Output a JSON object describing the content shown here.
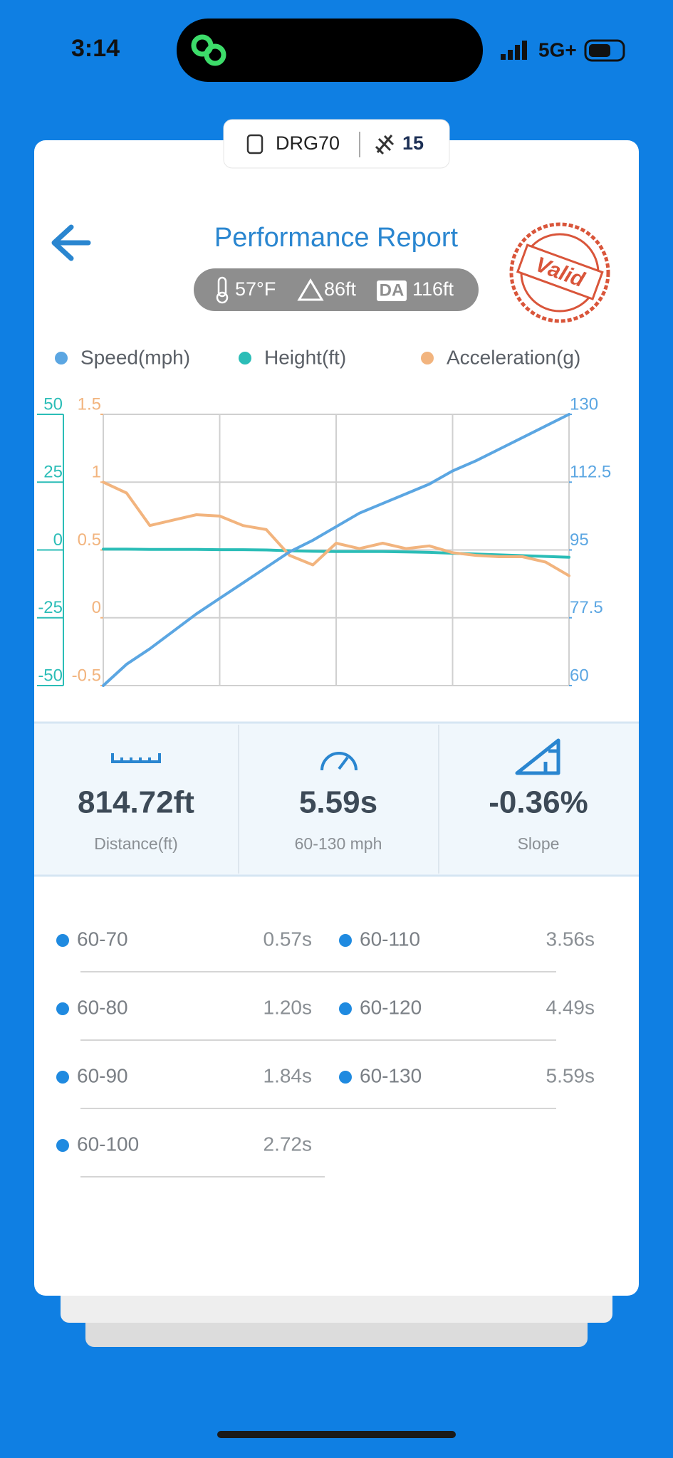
{
  "status_bar": {
    "time": "3:14",
    "network": "5G+"
  },
  "device": {
    "name": "DRG70",
    "count": "15"
  },
  "header": {
    "title": "Performance Report",
    "stamp": "Valid"
  },
  "conditions": {
    "temperature": "57°F",
    "altitude": "86ft",
    "da_label": "DA",
    "density_altitude": "116ft"
  },
  "chart_data": {
    "type": "line",
    "series": [
      {
        "name": "Speed(mph)",
        "color": "#5ba6e2",
        "axis": "y3",
        "values": [
          60,
          65.5,
          69.5,
          74,
          78.5,
          82.5,
          86.5,
          90.5,
          94.5,
          97.5,
          101,
          104.5,
          107,
          109.5,
          112,
          115.4,
          118,
          121,
          124,
          127,
          130
        ]
      },
      {
        "name": "Height(ft)",
        "color": "#2bbdb7",
        "axis": "y",
        "values": [
          0.3,
          0.3,
          0.2,
          0.2,
          0.2,
          0.1,
          0.1,
          0,
          -0.3,
          -0.5,
          -0.6,
          -0.6,
          -0.6,
          -0.7,
          -0.9,
          -1.2,
          -1.5,
          -1.8,
          -2.1,
          -2.4,
          -2.7
        ]
      },
      {
        "name": "Acceleration(g)",
        "color": "#f2b47e",
        "axis": "y2",
        "values": [
          1.0,
          0.92,
          0.68,
          0.72,
          0.76,
          0.75,
          0.68,
          0.65,
          0.46,
          0.39,
          0.55,
          0.51,
          0.55,
          0.51,
          0.53,
          0.48,
          0.46,
          0.45,
          0.45,
          0.41,
          0.31
        ]
      }
    ],
    "ylim": [
      -50,
      50
    ],
    "yticks": [
      -50,
      -25,
      0,
      25,
      50
    ],
    "y2lim": [
      -0.5,
      1.5
    ],
    "y2ticks": [
      -0.5,
      0,
      0.5,
      1,
      1.5
    ],
    "y3lim": [
      60,
      130
    ],
    "y3ticks": [
      60,
      77.5,
      95,
      112.5,
      130
    ],
    "grid": true
  },
  "summary": [
    {
      "value": "814.72ft",
      "label": "Distance(ft)"
    },
    {
      "value": "5.59s",
      "label": "60-130 mph"
    },
    {
      "value": "-0.36%",
      "label": "Slope"
    }
  ],
  "splits": [
    {
      "range": "60-70",
      "time": "0.57s"
    },
    {
      "range": "60-80",
      "time": "1.20s"
    },
    {
      "range": "60-90",
      "time": "1.84s"
    },
    {
      "range": "60-100",
      "time": "2.72s"
    },
    {
      "range": "60-110",
      "time": "3.56s"
    },
    {
      "range": "60-120",
      "time": "4.49s"
    },
    {
      "range": "60-130",
      "time": "5.59s"
    }
  ]
}
